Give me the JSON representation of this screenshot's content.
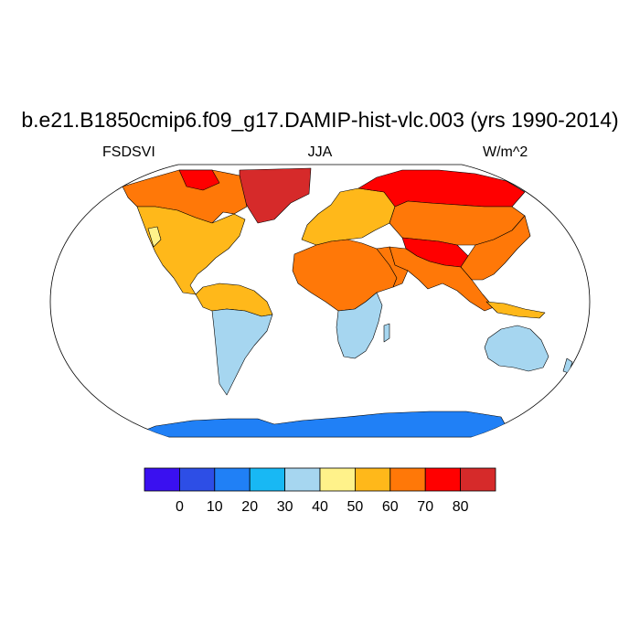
{
  "figure": {
    "title": "b.e21.B1850cmip6.f09_g17.DAMIP-hist-vlc.003 (yrs 1990-2014)",
    "left_label": "FSDSVI",
    "center_label": "JJA",
    "right_label": "W/m^2"
  },
  "map": {
    "projection": "Robinson",
    "ocean_color": "#ffffff",
    "coastline_color": "#000000",
    "regions": [
      {
        "name": "Greenland",
        "level": 80
      },
      {
        "name": "Northern Canada",
        "level": 60
      },
      {
        "name": "North America",
        "level": 50
      },
      {
        "name": "South America north",
        "level": 50
      },
      {
        "name": "South America south",
        "level": 30
      },
      {
        "name": "Africa north",
        "level": 60
      },
      {
        "name": "Africa south",
        "level": 30
      },
      {
        "name": "Europe",
        "level": 50
      },
      {
        "name": "Siberia",
        "level": 70
      },
      {
        "name": "Central Asia / Tibet",
        "level": 70
      },
      {
        "name": "South East Asia",
        "level": 60
      },
      {
        "name": "Australia",
        "level": 30
      },
      {
        "name": "Antarctica",
        "level": 10
      }
    ]
  },
  "colorbar": {
    "colors": [
      "#3a10f0",
      "#2d4ee6",
      "#2080f6",
      "#18b8f4",
      "#a6d6f0",
      "#fff28a",
      "#ffb81a",
      "#ff7808",
      "#ff0000",
      "#d62a2a"
    ],
    "tick_labels": [
      "0",
      "10",
      "20",
      "30",
      "40",
      "50",
      "60",
      "70",
      "80"
    ]
  }
}
